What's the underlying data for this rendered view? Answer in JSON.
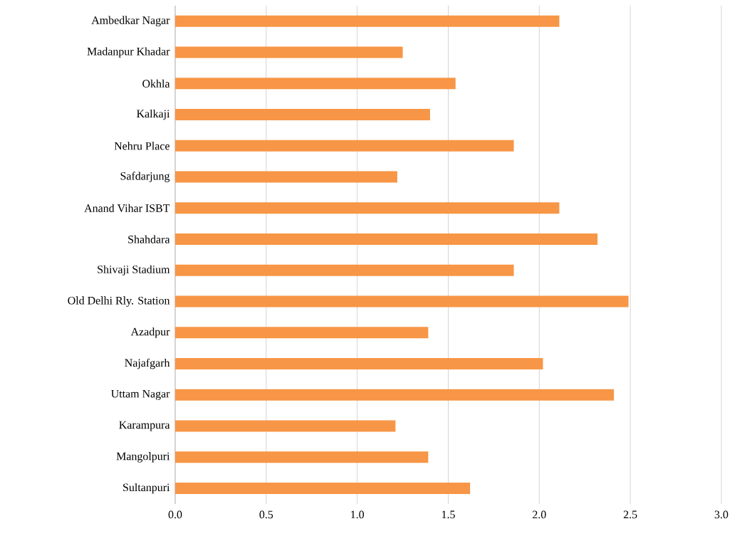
{
  "chart_data": {
    "type": "bar",
    "orientation": "horizontal",
    "categories": [
      "Ambedkar Nagar",
      "Madanpur Khadar",
      "Okhla",
      "Kalkaji",
      "Nehru Place",
      "Safdarjung",
      "Anand Vihar ISBT",
      "Shahdara",
      "Shivaji Stadium",
      "Old Delhi Rly. Station",
      "Azadpur",
      "Najafgarh",
      "Uttam Nagar",
      "Karampura",
      "Mangolpuri",
      "Sultanpuri"
    ],
    "values": [
      2.11,
      1.25,
      1.54,
      1.4,
      1.86,
      1.22,
      2.11,
      2.32,
      1.86,
      2.49,
      1.39,
      2.02,
      2.41,
      1.21,
      1.39,
      1.62
    ],
    "color": "#f79646",
    "xlim": [
      0,
      3
    ],
    "xticks": [
      {
        "value": 0,
        "label": "0.0"
      },
      {
        "value": 0.5,
        "label": "0.5"
      },
      {
        "value": 1,
        "label": "1.0"
      },
      {
        "value": 1.5,
        "label": "1.5"
      },
      {
        "value": 2,
        "label": "2.0"
      },
      {
        "value": 2.5,
        "label": "2.5"
      },
      {
        "value": 3,
        "label": "3.0"
      }
    ],
    "grid": "x"
  }
}
